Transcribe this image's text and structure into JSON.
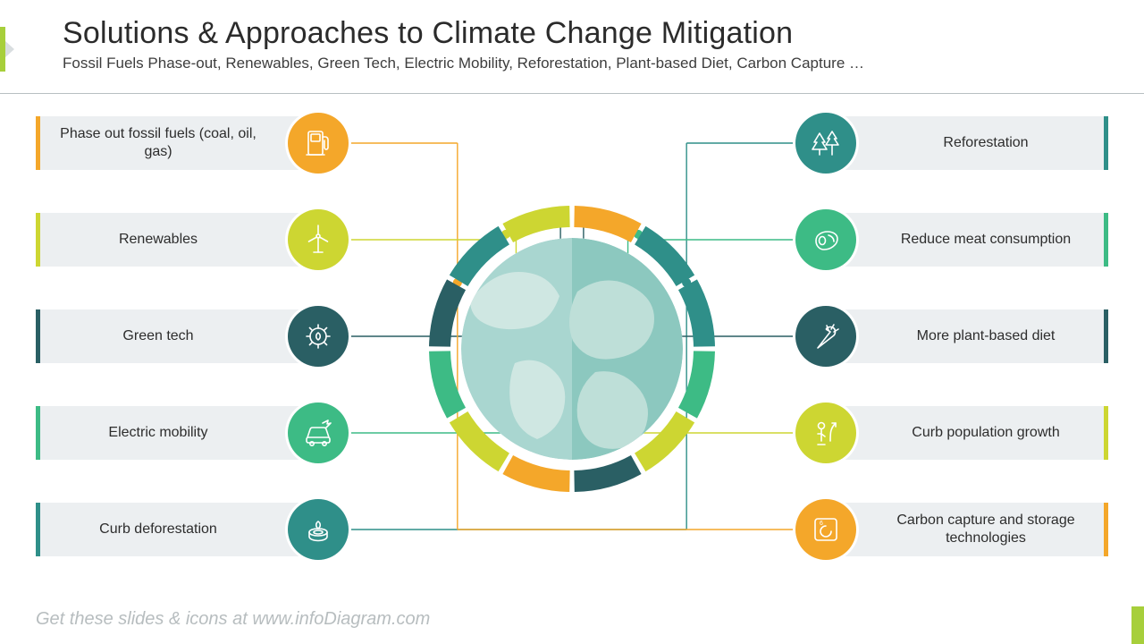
{
  "page": {
    "title": "Solutions & Approaches to Climate Change Mitigation",
    "subtitle": "Fossil Fuels Phase-out, Renewables, Green Tech, Electric Mobility, Reforestation, Plant-based Diet, Carbon Capture …",
    "footer": "Get these slides & icons at www.infoDiagram.com",
    "accent_color": "#a7cf3b",
    "divider_color": "#b8bfc2",
    "bar_bg": "#eceff1",
    "title_fontsize": 34,
    "subtitle_fontsize": 17,
    "label_fontsize": 16
  },
  "hub": {
    "globe_water_left": "#a9d6d0",
    "globe_water_right": "#8cc8bf",
    "globe_land_left": "#cfe7e2",
    "globe_land_right": "#bedfd8",
    "ring_thickness": 24,
    "ring_gap_deg": 2,
    "ring_segments": [
      "#f4a72a",
      "#2f8f89",
      "#2f8f89",
      "#3dbb85",
      "#cdd632",
      "#2a5f64",
      "#f4a72a",
      "#cdd632",
      "#3dbb85",
      "#2a5f64",
      "#2f8f89",
      "#cdd632"
    ]
  },
  "left_items": [
    {
      "label": "Phase out fossil fuels (coal, oil, gas)",
      "color": "#f4a72a",
      "icon": "fuel-pump-icon"
    },
    {
      "label": "Renewables",
      "color": "#cdd632",
      "icon": "wind-turbine-icon"
    },
    {
      "label": "Green tech",
      "color": "#2a5f64",
      "icon": "eco-gear-icon"
    },
    {
      "label": "Electric mobility",
      "color": "#3dbb85",
      "icon": "ev-car-icon"
    },
    {
      "label": "Curb deforestation",
      "color": "#2f8f89",
      "icon": "tree-stump-icon"
    }
  ],
  "right_items": [
    {
      "label": "Reforestation",
      "color": "#2f8f89",
      "icon": "trees-icon"
    },
    {
      "label": "Reduce meat consumption",
      "color": "#3dbb85",
      "icon": "steak-icon"
    },
    {
      "label": "More plant-based diet",
      "color": "#2a5f64",
      "icon": "carrot-icon"
    },
    {
      "label": "Curb population growth",
      "color": "#cdd632",
      "icon": "population-icon"
    },
    {
      "label": "Carbon capture and storage technologies",
      "color": "#f4a72a",
      "icon": "carbon-element-icon"
    }
  ]
}
